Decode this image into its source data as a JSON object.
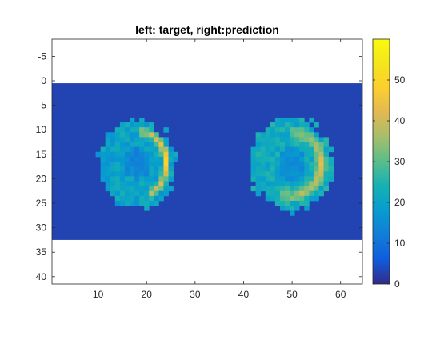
{
  "chart_data": {
    "type": "heatmap",
    "title": "left: target, right:prediction",
    "xlabel": "",
    "ylabel": "",
    "xlim": [
      0.5,
      64.5
    ],
    "ylim": [
      -8.5,
      41.5
    ],
    "y_direction": "reversed",
    "image_extent": {
      "x": [
        0.5,
        64.5
      ],
      "y": [
        0.5,
        32.5
      ]
    },
    "xticks": [
      10,
      20,
      30,
      40,
      50,
      60
    ],
    "yticks": [
      -5,
      0,
      5,
      10,
      15,
      20,
      25,
      30,
      35,
      40
    ],
    "colorbar": {
      "range": [
        0,
        60
      ],
      "ticks": [
        0,
        10,
        20,
        30,
        40,
        50
      ],
      "colormap": "parula"
    },
    "background_value": 3,
    "regions": [
      {
        "name": "target",
        "center": [
          18,
          17
        ],
        "radius": [
          8,
          9
        ],
        "ring": {
          "center": [
            19,
            17
          ],
          "radius": [
            5,
            6.5
          ],
          "angle_range": [
            -95,
            75
          ],
          "value": 52,
          "thickness": 1.3
        },
        "base_value": 20,
        "center_value": 14
      },
      {
        "name": "prediction",
        "center": [
          50,
          17
        ],
        "radius": [
          8.5,
          9.5
        ],
        "ring": {
          "center": [
            50,
            17
          ],
          "radius": [
            6,
            6.5
          ],
          "angle_range": [
            -90,
            110
          ],
          "value": 44,
          "thickness": 1.6
        },
        "base_value": 22,
        "center_value": 16
      }
    ]
  }
}
